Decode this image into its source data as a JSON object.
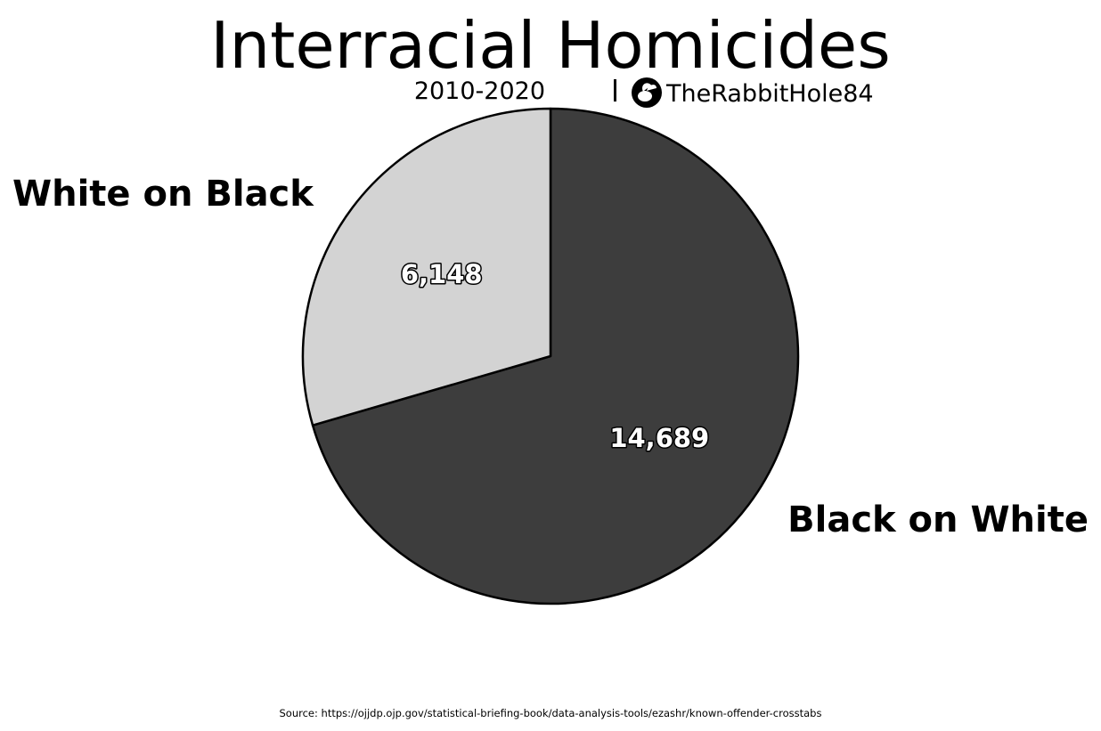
{
  "chart_data": {
    "type": "pie",
    "title": "Interracial Homicides",
    "subtitle": "2010-2020",
    "categories": [
      "Black on White",
      "White on Black"
    ],
    "values": [
      14689,
      6148
    ],
    "value_labels": [
      "14,689",
      "6,148"
    ],
    "colors": [
      "#3d3d3d",
      "#d3d3d3"
    ],
    "start_angle": "12 o'clock",
    "direction": "clockwise"
  },
  "watermark": {
    "handle": "TheRabbitHole84",
    "icon": "rabbit-icon"
  },
  "source": "Source: https://ojjdp.ojp.gov/statistical-briefing-book/data-analysis-tools/ezashr/known-offender-crosstabs"
}
